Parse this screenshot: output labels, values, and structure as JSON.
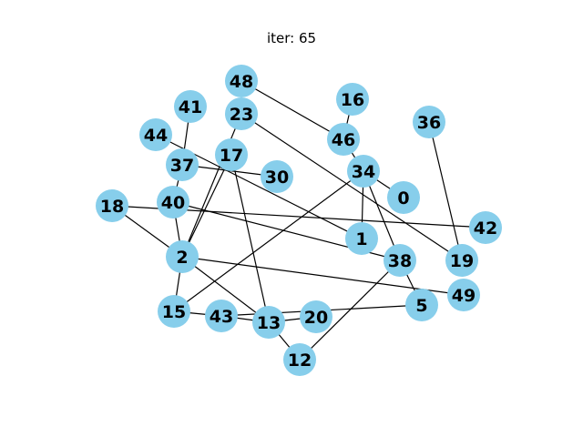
{
  "title": "iter: 65",
  "colors": {
    "node_fill": "#87ceeb",
    "edge": "#000000",
    "label": "#000000"
  },
  "nodes": [
    "48",
    "41",
    "23",
    "16",
    "36",
    "44",
    "46",
    "17",
    "37",
    "34",
    "30",
    "0",
    "18",
    "40",
    "42",
    "1",
    "2",
    "38",
    "19",
    "49",
    "5",
    "15",
    "43",
    "13",
    "20",
    "12"
  ],
  "edges": [
    [
      "48",
      "46"
    ],
    [
      "23",
      "19"
    ],
    [
      "44",
      "1"
    ],
    [
      "41",
      "37"
    ],
    [
      "37",
      "30"
    ],
    [
      "37",
      "40"
    ],
    [
      "16",
      "46"
    ],
    [
      "46",
      "34"
    ],
    [
      "34",
      "0"
    ],
    [
      "34",
      "1"
    ],
    [
      "34",
      "38"
    ],
    [
      "34",
      "15"
    ],
    [
      "36",
      "19"
    ],
    [
      "17",
      "2"
    ],
    [
      "17",
      "13"
    ],
    [
      "23",
      "2"
    ],
    [
      "40",
      "2"
    ],
    [
      "40",
      "38"
    ],
    [
      "18",
      "42"
    ],
    [
      "18",
      "2"
    ],
    [
      "2",
      "49"
    ],
    [
      "2",
      "15"
    ],
    [
      "2",
      "13"
    ],
    [
      "38",
      "5"
    ],
    [
      "38",
      "12"
    ],
    [
      "15",
      "43"
    ],
    [
      "43",
      "13"
    ],
    [
      "43",
      "5"
    ],
    [
      "13",
      "20"
    ],
    [
      "13",
      "12"
    ]
  ]
}
